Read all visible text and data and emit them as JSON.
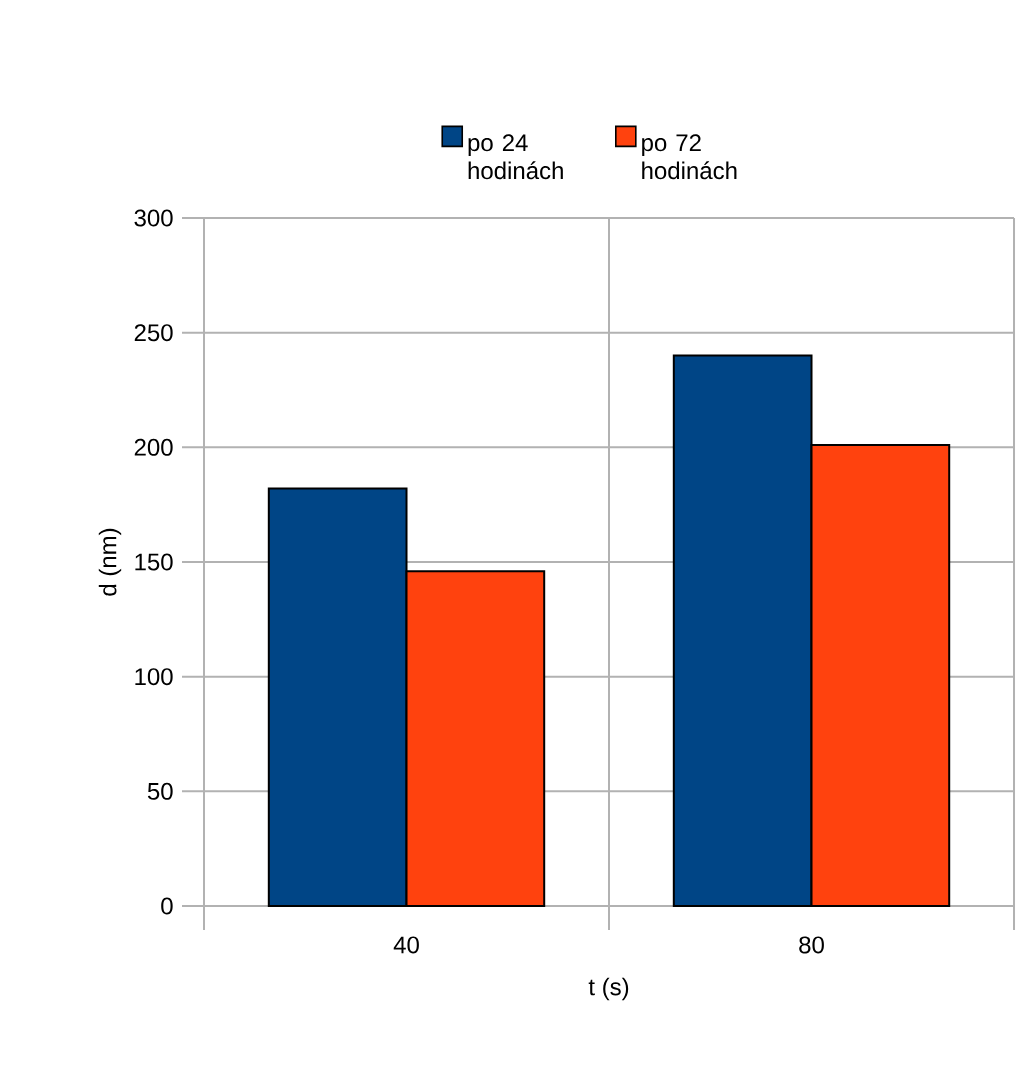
{
  "chart_data": {
    "type": "bar",
    "xlabel": "t (s)",
    "ylabel": "d (nm)",
    "categories": [
      "40",
      "80"
    ],
    "series": [
      {
        "name": "po 24 hodinách",
        "color": "#004586",
        "values": [
          182,
          240
        ]
      },
      {
        "name": "po 72 hodinách",
        "color": "#ff420e",
        "values": [
          146,
          201
        ]
      }
    ],
    "ylim": [
      0,
      300
    ],
    "yticks": [
      0,
      50,
      100,
      150,
      200,
      250,
      300
    ],
    "grid": true,
    "legend": "top"
  }
}
